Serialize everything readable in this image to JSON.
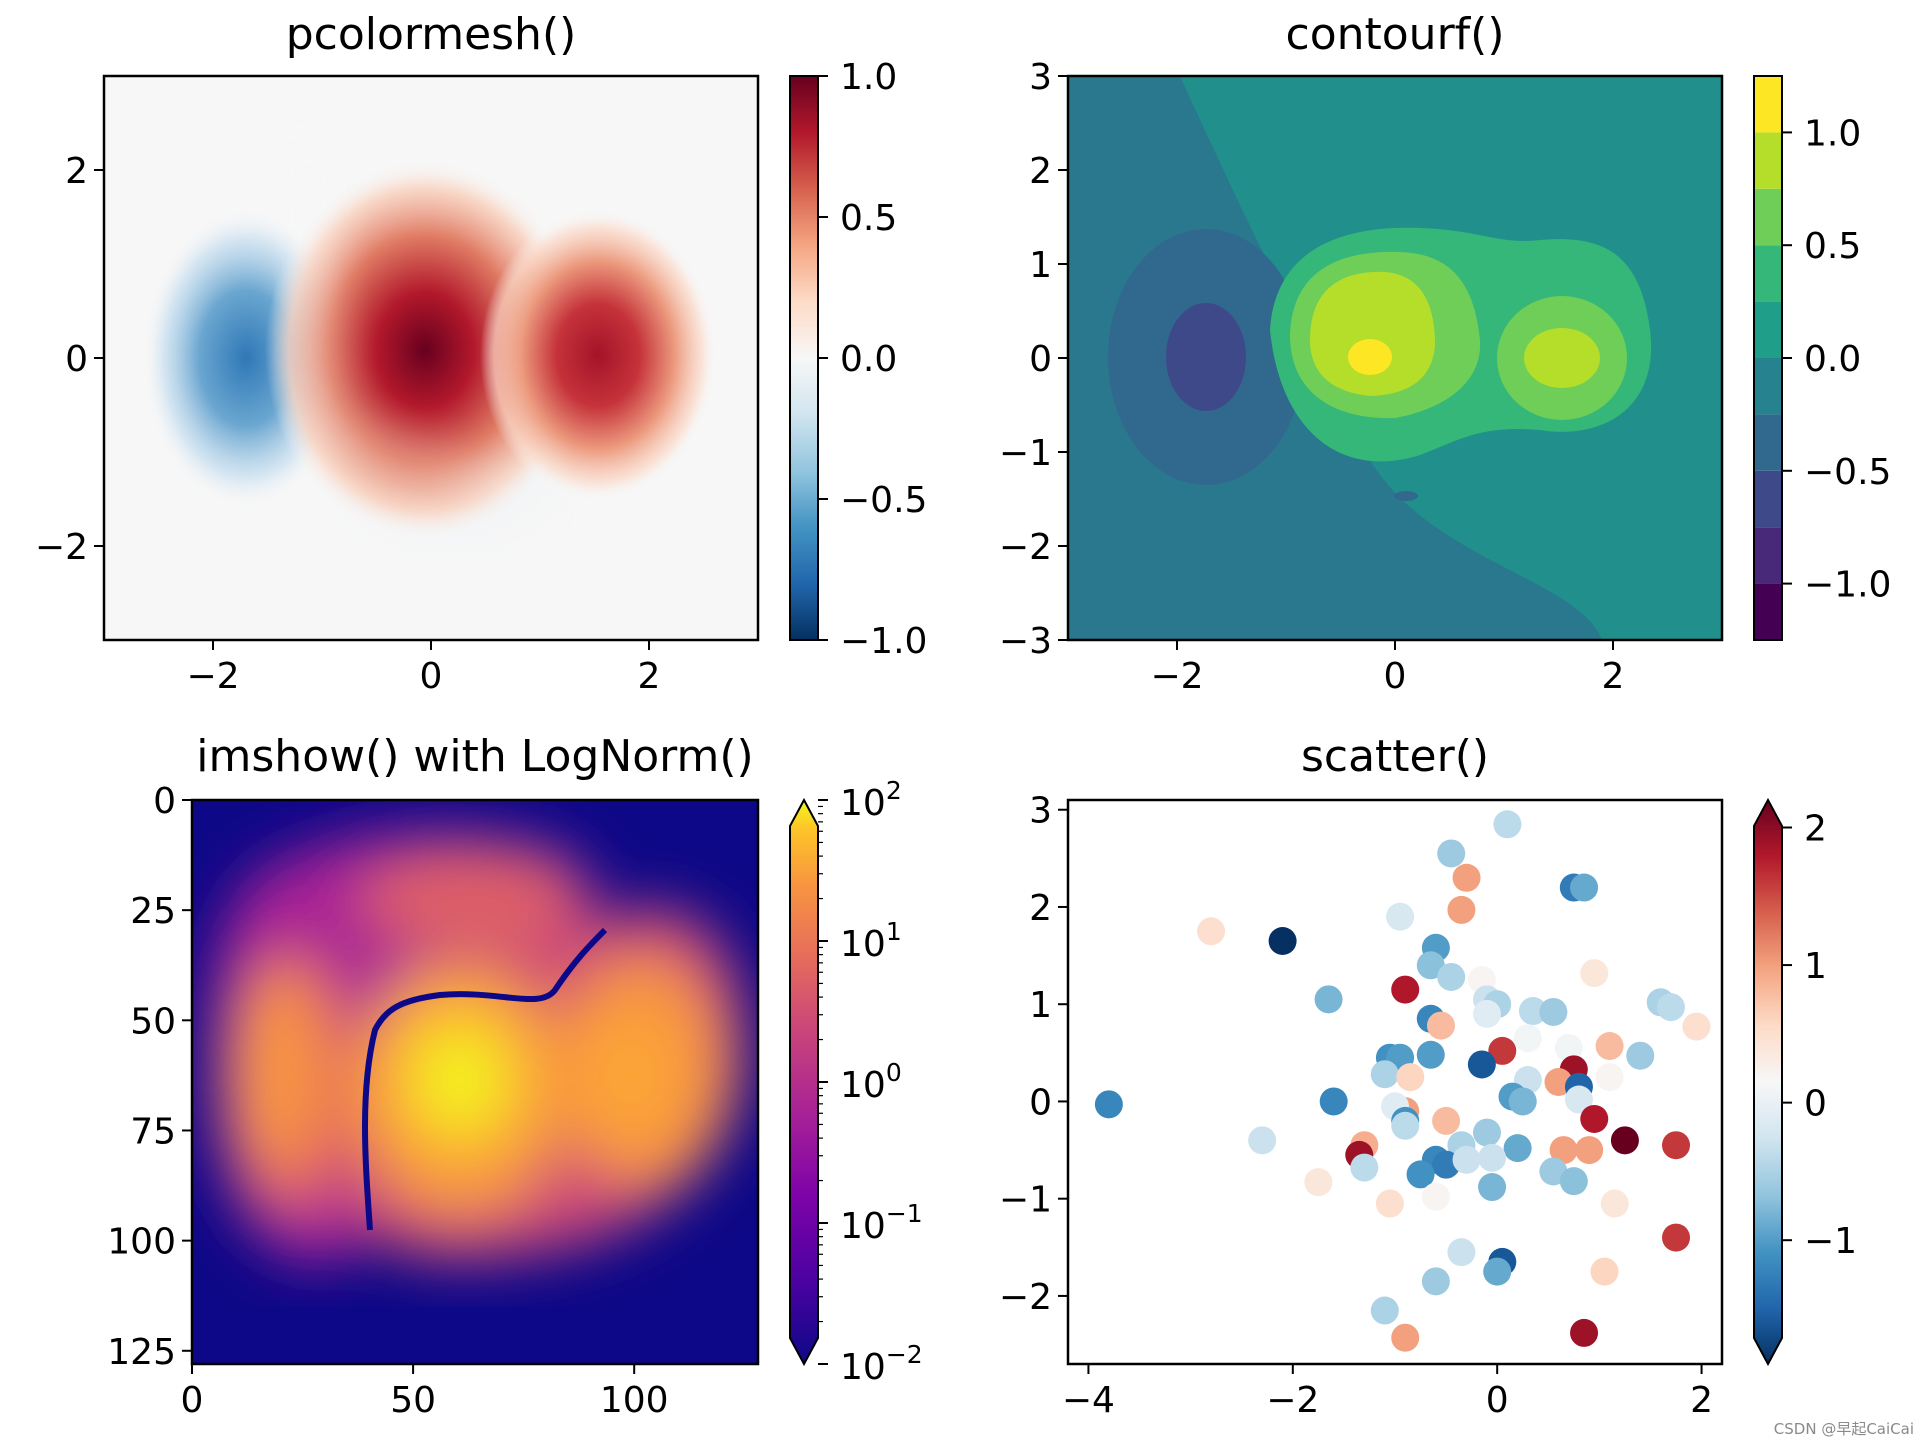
{
  "watermark": "CSDN @早起CaiCai",
  "chart_data": [
    {
      "type": "heatmap",
      "title": "pcolormesh()",
      "xlim": [
        -3,
        3
      ],
      "ylim": [
        -3,
        3
      ],
      "xticks": [
        -2,
        0,
        2
      ],
      "yticks": [
        -2,
        0,
        2
      ],
      "x_tick_labels": [
        "−2",
        "0",
        "2"
      ],
      "y_tick_labels": [
        "−2",
        "0",
        "2"
      ],
      "colormap": "RdBu_r",
      "colorbar": {
        "range": [
          -1,
          1
        ],
        "ticks": [
          1.0,
          0.5,
          0.0,
          -0.5,
          -1.0
        ],
        "tick_labels": [
          "1.0",
          "0.5",
          "0.0",
          "−0.5",
          "−1.0"
        ]
      },
      "features": [
        {
          "x": -1.75,
          "y": 0.0,
          "value": -0.7
        },
        {
          "x": -0.25,
          "y": 0.0,
          "value": 1.0
        },
        {
          "x": 1.6,
          "y": 0.0,
          "value": 0.8
        },
        {
          "x": 0.3,
          "y": -1.5,
          "value": -0.1
        }
      ]
    },
    {
      "type": "heatmap",
      "title": "contourf()",
      "xlim": [
        -3,
        3
      ],
      "ylim": [
        -3,
        3
      ],
      "xticks": [
        -2,
        0,
        2
      ],
      "yticks": [
        3,
        2,
        1,
        0,
        -1,
        -2,
        -3
      ],
      "x_tick_labels": [
        "−2",
        "0",
        "2"
      ],
      "y_tick_labels": [
        "3",
        "2",
        "1",
        "0",
        "−1",
        "−2",
        "−3"
      ],
      "colormap": "viridis",
      "levels": [
        -1.25,
        -1.0,
        -0.75,
        -0.5,
        -0.25,
        0.0,
        0.25,
        0.5,
        0.75,
        1.0,
        1.25
      ],
      "colorbar": {
        "range": [
          -1.25,
          1.25
        ],
        "ticks": [
          1.0,
          0.5,
          0.0,
          -0.5,
          -1.0
        ],
        "tick_labels": [
          "1.0",
          "0.5",
          "0.0",
          "−0.5",
          "−1.0"
        ]
      }
    },
    {
      "type": "heatmap",
      "title": "imshow() with LogNorm()",
      "xlim": [
        0,
        128
      ],
      "ylim": [
        128,
        0
      ],
      "xticks": [
        0,
        50,
        100
      ],
      "yticks": [
        0,
        25,
        50,
        75,
        100,
        125
      ],
      "x_tick_labels": [
        "0",
        "50",
        "100"
      ],
      "y_tick_labels": [
        "0",
        "25",
        "50",
        "75",
        "100",
        "125"
      ],
      "colormap": "plasma",
      "scale": "log",
      "colorbar": {
        "range": [
          0.01,
          100
        ],
        "extend": "both",
        "ticks": [
          {
            "base": "10",
            "exp": "2",
            "value": 100
          },
          {
            "base": "10",
            "exp": "1",
            "value": 10
          },
          {
            "base": "10",
            "exp": "0",
            "value": 1
          },
          {
            "base": "10",
            "exp": "−1",
            "value": 0.1
          },
          {
            "base": "10",
            "exp": "−2",
            "value": 0.01
          }
        ]
      }
    },
    {
      "type": "scatter",
      "title": "scatter()",
      "xlim": [
        -4.2,
        2.2
      ],
      "ylim": [
        -2.7,
        3.1
      ],
      "xticks": [
        -4,
        -2,
        0,
        2
      ],
      "yticks": [
        3,
        2,
        1,
        0,
        -1,
        -2
      ],
      "x_tick_labels": [
        "−4",
        "−2",
        "0",
        "2"
      ],
      "y_tick_labels": [
        "3",
        "2",
        "1",
        "0",
        "−1",
        "−2"
      ],
      "colormap": "RdBu_r",
      "colorbar": {
        "range": [
          -1.9,
          2.2
        ],
        "extend": "both",
        "ticks": [
          2,
          1,
          0,
          -1
        ],
        "tick_labels": [
          "2",
          "1",
          "0",
          "−1"
        ]
      },
      "points": [
        {
          "x": 0.1,
          "y": 2.85,
          "c": -0.4
        },
        {
          "x": -0.45,
          "y": 2.55,
          "c": -0.6
        },
        {
          "x": -0.3,
          "y": 2.3,
          "c": 1.0
        },
        {
          "x": 0.75,
          "y": 2.2,
          "c": -1.3
        },
        {
          "x": 0.85,
          "y": 2.2,
          "c": -0.9
        },
        {
          "x": -0.35,
          "y": 1.97,
          "c": 1.0
        },
        {
          "x": -0.95,
          "y": 1.9,
          "c": -0.2
        },
        {
          "x": -2.8,
          "y": 1.75,
          "c": 0.5
        },
        {
          "x": -2.1,
          "y": 1.65,
          "c": -1.9
        },
        {
          "x": -0.6,
          "y": 1.58,
          "c": -1.0
        },
        {
          "x": -0.65,
          "y": 1.4,
          "c": -0.7
        },
        {
          "x": -0.45,
          "y": 1.28,
          "c": -0.5
        },
        {
          "x": -0.15,
          "y": 1.25,
          "c": 0.2
        },
        {
          "x": 0.95,
          "y": 1.32,
          "c": 0.4
        },
        {
          "x": -0.9,
          "y": 1.15,
          "c": 1.8
        },
        {
          "x": -1.65,
          "y": 1.05,
          "c": -0.8
        },
        {
          "x": -0.1,
          "y": 1.05,
          "c": -0.3
        },
        {
          "x": 0.0,
          "y": 1.0,
          "c": -0.5
        },
        {
          "x": 0.35,
          "y": 0.93,
          "c": -0.4
        },
        {
          "x": 0.55,
          "y": 0.92,
          "c": -0.6
        },
        {
          "x": -0.65,
          "y": 0.85,
          "c": -1.2
        },
        {
          "x": -0.55,
          "y": 0.78,
          "c": 0.8
        },
        {
          "x": -0.1,
          "y": 0.9,
          "c": -0.1
        },
        {
          "x": 1.6,
          "y": 1.02,
          "c": -0.5
        },
        {
          "x": 1.7,
          "y": 0.97,
          "c": -0.4
        },
        {
          "x": 1.95,
          "y": 0.77,
          "c": 0.5
        },
        {
          "x": 0.3,
          "y": 0.65,
          "c": 0.1
        },
        {
          "x": 0.7,
          "y": 0.55,
          "c": 0.1
        },
        {
          "x": 1.1,
          "y": 0.57,
          "c": 0.8
        },
        {
          "x": 1.4,
          "y": 0.47,
          "c": -0.6
        },
        {
          "x": 0.05,
          "y": 0.52,
          "c": 1.6
        },
        {
          "x": -1.05,
          "y": 0.45,
          "c": -1.1
        },
        {
          "x": -0.95,
          "y": 0.45,
          "c": -1.0
        },
        {
          "x": -0.65,
          "y": 0.48,
          "c": -1.0
        },
        {
          "x": -0.15,
          "y": 0.38,
          "c": -1.6
        },
        {
          "x": 0.75,
          "y": 0.33,
          "c": 1.9
        },
        {
          "x": 0.6,
          "y": 0.2,
          "c": 1.0
        },
        {
          "x": -1.1,
          "y": 0.28,
          "c": -0.5
        },
        {
          "x": -0.85,
          "y": 0.25,
          "c": 0.6
        },
        {
          "x": 1.1,
          "y": 0.25,
          "c": 0.2
        },
        {
          "x": 0.3,
          "y": 0.22,
          "c": -0.3
        },
        {
          "x": 0.8,
          "y": 0.15,
          "c": -1.5
        },
        {
          "x": -1.6,
          "y": 0.0,
          "c": -1.2
        },
        {
          "x": 0.15,
          "y": 0.05,
          "c": -1.0
        },
        {
          "x": 0.25,
          "y": 0.0,
          "c": -0.8
        },
        {
          "x": 0.8,
          "y": 0.02,
          "c": -0.2
        },
        {
          "x": -3.8,
          "y": -0.03,
          "c": -1.2
        },
        {
          "x": -0.9,
          "y": -0.1,
          "c": 1.0
        },
        {
          "x": -1.0,
          "y": -0.05,
          "c": -0.1
        },
        {
          "x": -0.9,
          "y": -0.2,
          "c": -1.1
        },
        {
          "x": -0.5,
          "y": -0.2,
          "c": 0.8
        },
        {
          "x": -0.9,
          "y": -0.25,
          "c": -0.4
        },
        {
          "x": 0.95,
          "y": -0.18,
          "c": 1.8
        },
        {
          "x": 1.25,
          "y": -0.4,
          "c": 2.2
        },
        {
          "x": -0.1,
          "y": -0.32,
          "c": -0.6
        },
        {
          "x": -2.3,
          "y": -0.4,
          "c": -0.3
        },
        {
          "x": -1.3,
          "y": -0.45,
          "c": 0.9
        },
        {
          "x": -1.35,
          "y": -0.55,
          "c": 1.9
        },
        {
          "x": -0.35,
          "y": -0.45,
          "c": -0.5
        },
        {
          "x": 0.2,
          "y": -0.48,
          "c": -0.9
        },
        {
          "x": 0.9,
          "y": -0.5,
          "c": 1.0
        },
        {
          "x": 0.65,
          "y": -0.5,
          "c": 1.0
        },
        {
          "x": 1.75,
          "y": -0.45,
          "c": 1.6
        },
        {
          "x": -0.05,
          "y": -0.58,
          "c": -0.3
        },
        {
          "x": -0.6,
          "y": -0.6,
          "c": -1.2
        },
        {
          "x": -0.5,
          "y": -0.65,
          "c": -1.3
        },
        {
          "x": -0.3,
          "y": -0.6,
          "c": -0.3
        },
        {
          "x": 0.55,
          "y": -0.72,
          "c": -0.6
        },
        {
          "x": -1.3,
          "y": -0.68,
          "c": -0.4
        },
        {
          "x": -0.75,
          "y": -0.75,
          "c": -1.1
        },
        {
          "x": 0.75,
          "y": -0.82,
          "c": -0.7
        },
        {
          "x": -1.75,
          "y": -0.83,
          "c": 0.4
        },
        {
          "x": -0.05,
          "y": -0.88,
          "c": -0.8
        },
        {
          "x": -0.6,
          "y": -0.98,
          "c": 0.2
        },
        {
          "x": -1.05,
          "y": -1.05,
          "c": 0.5
        },
        {
          "x": 1.15,
          "y": -1.05,
          "c": 0.4
        },
        {
          "x": 1.75,
          "y": -1.4,
          "c": 1.6
        },
        {
          "x": -0.35,
          "y": -1.55,
          "c": -0.3
        },
        {
          "x": 0.05,
          "y": -1.65,
          "c": -1.6
        },
        {
          "x": 1.05,
          "y": -1.75,
          "c": 0.6
        },
        {
          "x": 0.0,
          "y": -1.75,
          "c": -0.9
        },
        {
          "x": -0.6,
          "y": -1.85,
          "c": -0.6
        },
        {
          "x": -1.1,
          "y": -2.15,
          "c": -0.5
        },
        {
          "x": -0.9,
          "y": -2.43,
          "c": 1.0
        },
        {
          "x": 0.85,
          "y": -2.38,
          "c": 1.9
        }
      ]
    }
  ]
}
